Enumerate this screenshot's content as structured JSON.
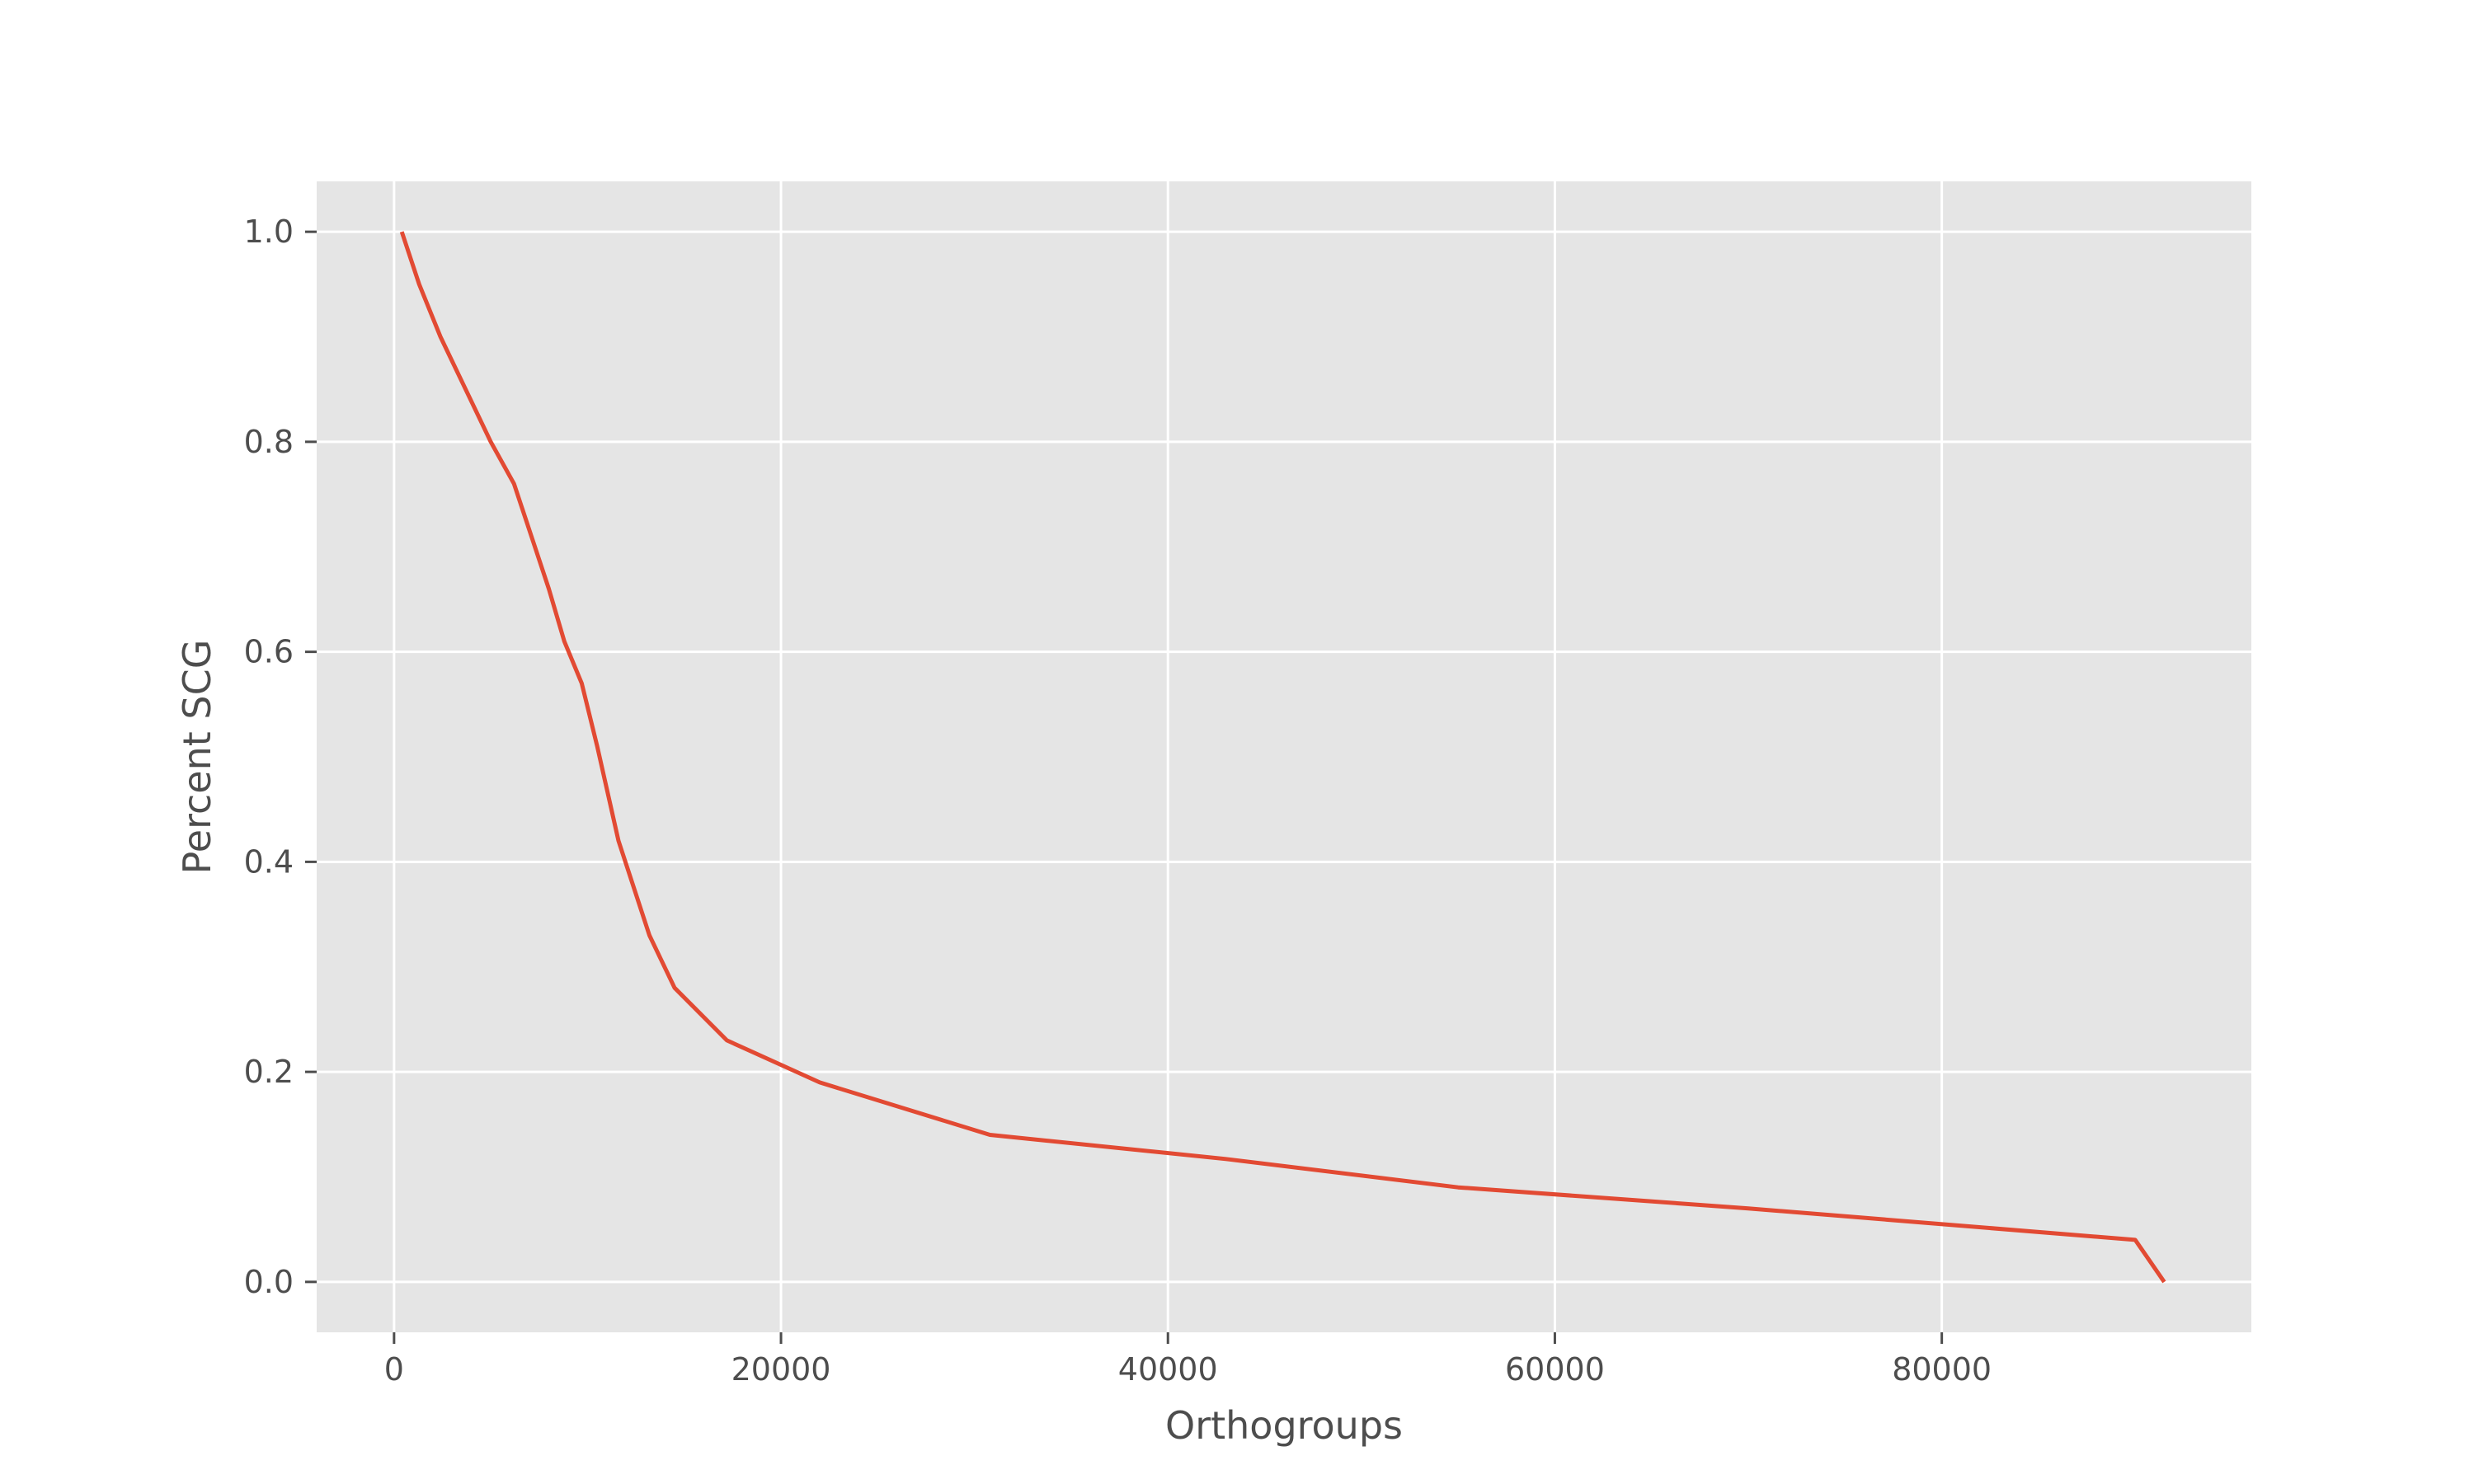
{
  "chart_data": {
    "type": "line",
    "title": "",
    "xlabel": "Orthogroups",
    "ylabel": "Percent SCG",
    "xlim": [
      -4000,
      96000
    ],
    "ylim": [
      -0.048,
      1.048
    ],
    "x_ticks": [
      0,
      20000,
      40000,
      60000,
      80000
    ],
    "x_tick_labels": [
      "0",
      "20000",
      "40000",
      "60000",
      "80000"
    ],
    "y_ticks": [
      0.0,
      0.2,
      0.4,
      0.6,
      0.8,
      1.0
    ],
    "y_tick_labels": [
      "0.0",
      "0.2",
      "0.4",
      "0.6",
      "0.8",
      "1.0"
    ],
    "grid": true,
    "colors": {
      "background": "#e5e5e5",
      "line": "#e24a33"
    },
    "series": [
      {
        "x": [
          400,
          1300,
          2400,
          3700,
          5000,
          6200,
          7100,
          8000,
          8800,
          9700,
          10500,
          11600,
          13200,
          14500,
          17200,
          22000,
          30800,
          43000,
          55000,
          70000,
          90000,
          91500
        ],
        "y": [
          1.0,
          0.95,
          0.9,
          0.85,
          0.8,
          0.76,
          0.71,
          0.66,
          0.61,
          0.57,
          0.51,
          0.42,
          0.33,
          0.28,
          0.23,
          0.19,
          0.14,
          0.117,
          0.09,
          0.07,
          0.04,
          0.0
        ]
      }
    ]
  }
}
